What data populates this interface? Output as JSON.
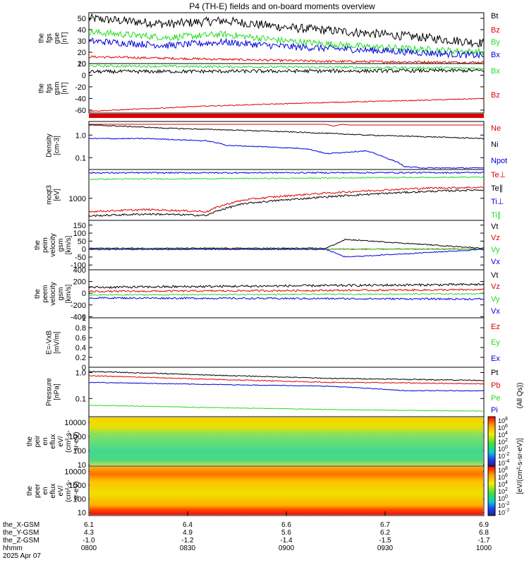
{
  "title": "P4 (TH-E) fields and on-board moments overview",
  "colors": {
    "black": "#000000",
    "red": "#e00000",
    "green": "#22dd22",
    "blue": "#0000e0",
    "spec_bg_top": "#f5d000",
    "spec_bg_bottom": "#ff8000"
  },
  "chart_data": [
    {
      "type": "line",
      "panel": "fgs_gse",
      "ylabel": [
        "the",
        "fgs",
        "gse",
        "[nT]"
      ],
      "ylim": [
        10,
        55
      ],
      "yticks": [
        10,
        20,
        30,
        40,
        50
      ],
      "legend_placement": "right",
      "series": [
        {
          "name": "Bt",
          "color": "#000000",
          "x": [
            0,
            0.2,
            0.34,
            0.5,
            0.7,
            0.85,
            1.0
          ],
          "y": [
            50,
            45,
            48,
            42,
            37,
            33,
            28
          ],
          "noise": 4
        },
        {
          "name": "Bz",
          "color": "#e00000",
          "x": [
            0,
            0.3,
            0.6,
            1.0
          ],
          "y": [
            16,
            14,
            12,
            11
          ],
          "noise": 1
        },
        {
          "name": "By",
          "color": "#22dd22",
          "x": [
            0,
            0.2,
            0.34,
            0.5,
            0.7,
            1.0
          ],
          "y": [
            38,
            33,
            36,
            30,
            25,
            20
          ],
          "noise": 3
        },
        {
          "name": "Bx",
          "color": "#0000e0",
          "x": [
            0,
            0.2,
            0.34,
            0.5,
            0.7,
            1.0
          ],
          "y": [
            30,
            26,
            29,
            25,
            22,
            17
          ],
          "noise": 3
        }
      ]
    },
    {
      "type": "line",
      "panel": "fgs_gsm",
      "ylabel": [
        "the",
        "fgs",
        "gsm",
        "[nT]"
      ],
      "ylim": [
        -65,
        20
      ],
      "yticks": [
        -60,
        -40,
        -20,
        0,
        20
      ],
      "legend_placement": "right",
      "series": [
        {
          "name": "Bx",
          "color": "#22dd22",
          "x": [
            0,
            1.0
          ],
          "y": [
            16,
            12
          ],
          "noise": 2
        },
        {
          "name": "Bz",
          "color": "#e00000",
          "x": [
            0,
            0.3,
            0.6,
            0.85,
            1.0
          ],
          "y": [
            -62,
            -53,
            -47,
            -43,
            -40
          ],
          "noise": 0.8
        },
        {
          "name": "",
          "color": "#000000",
          "x": [
            0,
            1.0
          ],
          "y": [
            6,
            8
          ],
          "noise": 3
        }
      ]
    },
    {
      "type": "line",
      "panel": "density",
      "ylabel": [
        "Density",
        "[cm-3]"
      ],
      "yscale": "log",
      "ylim": [
        0.03,
        4
      ],
      "yticks": [
        0.1,
        1.0
      ],
      "legend_placement": "right",
      "series": [
        {
          "name": "Ne",
          "color": "#e00000",
          "x": [
            0.6,
            0.62,
            0.64,
            0.66
          ],
          "y": [
            3.0,
            2.5,
            3.0,
            2.8
          ],
          "noise": 0
        },
        {
          "name": "Ni",
          "color": "#000000",
          "x": [
            0,
            0.2,
            0.4,
            0.6,
            0.7,
            0.85,
            1.0
          ],
          "y": [
            2.8,
            2.0,
            1.6,
            1.2,
            1.0,
            0.85,
            0.7
          ],
          "noise": 0.05
        },
        {
          "name": "Npot",
          "color": "#0000e0",
          "x": [
            0,
            0.15,
            0.25,
            0.3,
            0.35,
            0.45,
            0.55,
            0.6,
            0.7,
            0.75,
            0.8,
            0.85,
            1.0
          ],
          "y": [
            0.7,
            0.7,
            0.6,
            0.55,
            0.35,
            0.3,
            0.25,
            0.15,
            0.2,
            0.1,
            0.04,
            0.035,
            0.035
          ],
          "noise": 0.05
        }
      ]
    },
    {
      "type": "line",
      "panel": "moments_t",
      "ylabel": [
        "moqt3",
        "[eV]"
      ],
      "yscale": "log",
      "ylim": [
        150,
        12000
      ],
      "yticks": [
        1000
      ],
      "legend_placement": "right",
      "series": [
        {
          "name": "Te⊥",
          "color": "#e00000",
          "x": [
            0,
            0.15,
            0.3,
            0.4,
            0.55,
            0.7,
            0.85,
            1.0
          ],
          "y": [
            320,
            380,
            320,
            900,
            1400,
            1900,
            2400,
            2600
          ],
          "noise": 0.08
        },
        {
          "name": "Te∥",
          "color": "#000000",
          "x": [
            0,
            0.15,
            0.3,
            0.4,
            0.55,
            0.7,
            0.85,
            1.0
          ],
          "y": [
            220,
            260,
            230,
            650,
            1000,
            1400,
            1800,
            2100
          ],
          "noise": 0.08
        },
        {
          "name": "Ti⊥",
          "color": "#0000e0",
          "x": [
            0,
            1.0
          ],
          "y": [
            9000,
            9200
          ],
          "noise": 0.06
        },
        {
          "name": "Ti∥",
          "color": "#22dd22",
          "x": [
            0,
            0.5,
            0.75,
            1.0
          ],
          "y": [
            5200,
            5600,
            6000,
            6200
          ],
          "noise": 0.05
        }
      ]
    },
    {
      "type": "line",
      "panel": "peim_velocity",
      "ylabel": [
        "the",
        "peim",
        "velocity",
        "gsm",
        "[km/s]"
      ],
      "ylim": [
        -130,
        180
      ],
      "yticks": [
        -100,
        -50,
        0,
        50,
        100,
        150
      ],
      "legend_placement": "right",
      "series": [
        {
          "name": "Vt",
          "color": "#000000",
          "x": [
            0,
            0.6,
            0.65,
            1.0
          ],
          "y": [
            5,
            5,
            60,
            5
          ],
          "noise": 3
        },
        {
          "name": "Vz",
          "color": "#e00000",
          "x": [
            0,
            1.0
          ],
          "y": [
            0,
            0
          ],
          "noise": 3
        },
        {
          "name": "Vy",
          "color": "#22dd22",
          "x": [
            0,
            1.0
          ],
          "y": [
            0,
            0
          ],
          "noise": 3
        },
        {
          "name": "Vx",
          "color": "#0000e0",
          "x": [
            0,
            0.6,
            0.65,
            1.0
          ],
          "y": [
            -2,
            -2,
            -50,
            -2
          ],
          "noise": 3
        }
      ]
    },
    {
      "type": "line",
      "panel": "peem_velocity",
      "ylabel": [
        "the",
        "peem",
        "velocity",
        "gsm",
        "[km/s]"
      ],
      "ylim": [
        -420,
        400
      ],
      "yticks": [
        -400,
        -200,
        0,
        200,
        400
      ],
      "legend_placement": "right",
      "series": [
        {
          "name": "Vt",
          "color": "#000000",
          "x": [
            0,
            1.0
          ],
          "y": [
            100,
            150
          ],
          "noise": 20
        },
        {
          "name": "Vz",
          "color": "#e00000",
          "x": [
            0,
            1.0
          ],
          "y": [
            30,
            60
          ],
          "noise": 15
        },
        {
          "name": "Vy",
          "color": "#22dd22",
          "x": [
            0,
            1.0
          ],
          "y": [
            -30,
            -10
          ],
          "noise": 10
        },
        {
          "name": "Vx",
          "color": "#0000e0",
          "x": [
            0,
            1.0
          ],
          "y": [
            -80,
            -100
          ],
          "noise": 15
        }
      ]
    },
    {
      "type": "line",
      "panel": "e_field",
      "ylabel": [
        "E=-VxB",
        "[mV/m]"
      ],
      "ylim": [
        0,
        1.0
      ],
      "yticks": [
        0.0,
        0.2,
        0.4,
        0.6,
        0.8,
        1.0
      ],
      "legend_placement": "right",
      "series": [
        {
          "name": "Ez",
          "color": "#e00000",
          "x": [],
          "y": [],
          "noise": 0
        },
        {
          "name": "Ey",
          "color": "#22dd22",
          "x": [],
          "y": [],
          "noise": 0
        },
        {
          "name": "Ex",
          "color": "#0000e0",
          "x": [],
          "y": [],
          "noise": 0
        }
      ]
    },
    {
      "type": "line",
      "panel": "pressure",
      "ylabel": [
        "Pressure",
        "[nPa]"
      ],
      "yscale": "log",
      "ylim": [
        0.02,
        1.6
      ],
      "yticks": [
        0.1,
        1.0
      ],
      "legend_placement": "right",
      "series": [
        {
          "name": "Pt",
          "color": "#000000",
          "x": [
            0,
            0.3,
            0.6,
            0.8,
            1.0
          ],
          "y": [
            1.1,
            0.8,
            0.6,
            0.55,
            0.5
          ],
          "noise": 0.04
        },
        {
          "name": "Pb",
          "color": "#e00000",
          "x": [
            0,
            0.3,
            0.6,
            0.8,
            1.0
          ],
          "y": [
            0.75,
            0.55,
            0.42,
            0.4,
            0.37
          ],
          "noise": 0.04
        },
        {
          "name": "Pe",
          "color": "#22dd22",
          "x": [
            0,
            0.3,
            0.6,
            0.8,
            1.0
          ],
          "y": [
            0.055,
            0.045,
            0.038,
            0.035,
            0.033
          ],
          "noise": 0.03
        },
        {
          "name": "Pi",
          "color": "#0000e0",
          "x": [
            0,
            0.3,
            0.6,
            0.8,
            1.0
          ],
          "y": [
            0.42,
            0.35,
            0.3,
            0.2,
            0.2
          ],
          "noise": 0.03
        }
      ]
    },
    {
      "type": "heatmap",
      "panel": "peir_spec",
      "ylabel": [
        "the",
        "peir",
        "en",
        "eflux",
        "eV/",
        "(cm²-s-",
        "sr-eV)"
      ],
      "yscale": "log",
      "ylim": [
        8,
        25000
      ],
      "yticks": [
        10,
        100,
        1000,
        10000
      ]
    },
    {
      "type": "heatmap",
      "panel": "peer_spec",
      "ylabel": [
        "the",
        "peer",
        "en",
        "eflux",
        "eV/",
        "(cm²-s-",
        "sr-eV)"
      ],
      "yscale": "log",
      "ylim": [
        6,
        25000
      ],
      "yticks": [
        10,
        100,
        1000,
        10000
      ]
    }
  ],
  "colorbar": {
    "label": "[eV/(cm²-s-sr-eV)]",
    "extra_label": "(All Qs))",
    "ticks_top": [
      "10",
      "10",
      "10",
      "10",
      "10",
      "10",
      "10"
    ],
    "ticks_top_exp": [
      "8",
      "6",
      "4",
      "2",
      "0",
      "-2",
      "-4"
    ],
    "ticks_bottom": [
      "10",
      "10",
      "10",
      "10",
      "10",
      "10",
      "10"
    ],
    "ticks_bottom_exp": [
      "8",
      "6",
      "4",
      "2",
      "0",
      "-2",
      "-7"
    ]
  },
  "xaxis": {
    "rows": [
      {
        "label": "the_X-GSM",
        "values": [
          "6.1",
          "6.4",
          "6.6",
          "6.7",
          "6.9"
        ]
      },
      {
        "label": "the_Y-GSM",
        "values": [
          "4.3",
          "4.9",
          "5.6",
          "6.2",
          "6.8"
        ]
      },
      {
        "label": "the_Z-GSM",
        "values": [
          "-1.0",
          "-1.2",
          "-1.4",
          "-1.5",
          "-1.7"
        ]
      },
      {
        "label": "hhmm",
        "values": [
          "0800",
          "0830",
          "0900",
          "0930",
          "1000"
        ]
      }
    ],
    "date": "2025 Apr 07"
  }
}
